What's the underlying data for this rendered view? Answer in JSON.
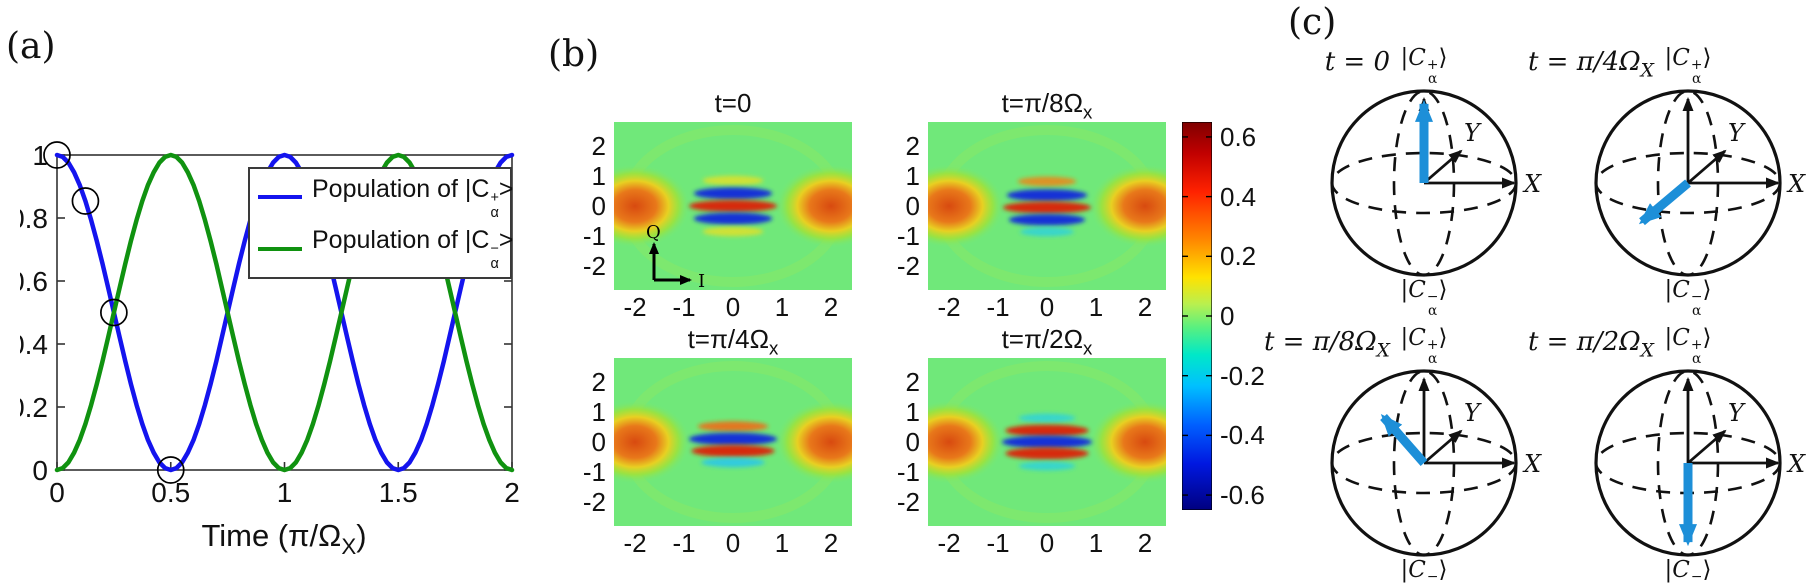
{
  "panels": {
    "a": {
      "label": "(a)",
      "legend": [
        {
          "text_pre": "Population of |C",
          "sup": "+",
          "sub": "α",
          "text_post": ">",
          "color": "#1414ee"
        },
        {
          "text_pre": "Population of |C",
          "sup": "−",
          "sub": "α",
          "text_post": ">",
          "color": "#109210"
        }
      ],
      "xlabel": {
        "pre": "Time (π/Ω",
        "sub": "X",
        "post": ")"
      }
    },
    "b": {
      "label": "(b)",
      "colorbar": {
        "tick_labels": [
          "0.6",
          "0.4",
          "0.2",
          "0",
          "-0.2",
          "-0.4",
          "-0.6"
        ],
        "tick_values": [
          0.6,
          0.4,
          0.2,
          0,
          -0.2,
          -0.4,
          -0.6
        ],
        "vmin": -0.65,
        "vmax": 0.65,
        "colormap": "jet"
      },
      "inset_axes": {
        "x_label": "I",
        "y_label": "Q"
      }
    },
    "c": {
      "label": "(c)",
      "ket_plus": {
        "open": "|",
        "letter": "C",
        "sup": "+",
        "sub": "α",
        "close": "⟩"
      },
      "ket_minus": {
        "open": "|",
        "letter": "C",
        "sup": "−",
        "sub": "α",
        "close": "⟩"
      },
      "axis_x": "X",
      "axis_y": "Y",
      "arrow_color": "#1d8fd8",
      "spheres": [
        {
          "time_pre": "t = 0",
          "time_sub": "",
          "arrow_dir": [
            0,
            -0.86
          ],
          "arrow_meaning": "state at +Z pole"
        },
        {
          "time_pre": "t = π/4Ω",
          "time_sub": "X",
          "arrow_dir": [
            -0.5,
            0.42
          ],
          "arrow_meaning": "state on equator toward -Y"
        },
        {
          "time_pre": "t = π/8Ω",
          "time_sub": "X",
          "arrow_dir": [
            -0.44,
            -0.5
          ],
          "arrow_meaning": "state between +Z and -Y"
        },
        {
          "time_pre": "t = π/2Ω",
          "time_sub": "X",
          "arrow_dir": [
            0,
            0.86
          ],
          "arrow_meaning": "state at -Z pole"
        }
      ]
    }
  },
  "chart_data": [
    {
      "type": "line",
      "title": "",
      "xlabel": "Time (π/Ω_X)",
      "ylabel": "",
      "xlim": [
        0,
        2
      ],
      "ylim": [
        0,
        1
      ],
      "xtick_values": [
        0,
        0.5,
        1,
        1.5,
        2
      ],
      "xtick_labels": [
        "0",
        "0.5",
        "1",
        "1.5",
        "2"
      ],
      "ytick_values": [
        0,
        0.2,
        0.4,
        0.6,
        0.8,
        1
      ],
      "ytick_labels": [
        "0",
        "0.2",
        "0.4",
        "0.6",
        "0.8",
        "1"
      ],
      "x_start": 0,
      "x_step": 0.025,
      "series": [
        {
          "name": "Population of |C_α^+>",
          "color": "#1414ee",
          "values": [
            1,
            0.994,
            0.976,
            0.945,
            0.904,
            0.854,
            0.794,
            0.727,
            0.655,
            0.578,
            0.5,
            0.422,
            0.345,
            0.273,
            0.206,
            0.146,
            0.095,
            0.055,
            0.024,
            0.006,
            0,
            0.006,
            0.024,
            0.055,
            0.095,
            0.146,
            0.206,
            0.273,
            0.345,
            0.422,
            0.5,
            0.578,
            0.655,
            0.727,
            0.794,
            0.854,
            0.904,
            0.945,
            0.976,
            0.994,
            1,
            0.994,
            0.976,
            0.945,
            0.904,
            0.854,
            0.794,
            0.727,
            0.655,
            0.578,
            0.5,
            0.422,
            0.345,
            0.273,
            0.206,
            0.146,
            0.095,
            0.055,
            0.024,
            0.006,
            0,
            0.006,
            0.024,
            0.055,
            0.095,
            0.146,
            0.206,
            0.273,
            0.345,
            0.422,
            0.5,
            0.578,
            0.655,
            0.727,
            0.794,
            0.854,
            0.904,
            0.945,
            0.976,
            0.994,
            1
          ]
        },
        {
          "name": "Population of |C_α^−>",
          "color": "#109210",
          "values": [
            0,
            0.006,
            0.024,
            0.055,
            0.096,
            0.146,
            0.206,
            0.273,
            0.345,
            0.422,
            0.5,
            0.578,
            0.655,
            0.727,
            0.794,
            0.854,
            0.905,
            0.945,
            0.976,
            0.994,
            1,
            0.994,
            0.976,
            0.945,
            0.905,
            0.854,
            0.794,
            0.727,
            0.655,
            0.578,
            0.5,
            0.422,
            0.345,
            0.273,
            0.206,
            0.146,
            0.096,
            0.055,
            0.024,
            0.006,
            0,
            0.006,
            0.024,
            0.055,
            0.096,
            0.146,
            0.206,
            0.273,
            0.345,
            0.422,
            0.5,
            0.578,
            0.655,
            0.727,
            0.794,
            0.854,
            0.905,
            0.945,
            0.976,
            0.994,
            1,
            0.994,
            0.976,
            0.945,
            0.905,
            0.854,
            0.794,
            0.727,
            0.655,
            0.578,
            0.5,
            0.422,
            0.345,
            0.273,
            0.206,
            0.146,
            0.096,
            0.055,
            0.024,
            0.006,
            0
          ]
        }
      ],
      "markers": {
        "series": "Population of |C_α^+>",
        "shape": "open-circle",
        "points": [
          [
            0,
            1
          ],
          [
            0.125,
            0.854
          ],
          [
            0.25,
            0.5
          ],
          [
            0.5,
            0
          ]
        ]
      }
    },
    {
      "type": "heatmap",
      "title_pre": "t=0",
      "title_sub": "",
      "xticks": [
        -2,
        -1,
        0,
        1,
        2
      ],
      "yticks": [
        2,
        1,
        0,
        -1,
        -2
      ],
      "xlim": [
        -2.43,
        2.43
      ],
      "ylim": [
        -2.8,
        2.8
      ],
      "value_range": [
        -0.65,
        0.65
      ],
      "background_value": 0,
      "inset": true,
      "positive_blobs": [
        [
          -2,
          0
        ],
        [
          2,
          0
        ]
      ],
      "fringes": [
        {
          "y": 0.85,
          "color": "#e0e029",
          "rx": 0.62,
          "ry": 0.16,
          "op": 0.85
        },
        {
          "y": 0.42,
          "color": "#1433d6",
          "rx": 0.8,
          "ry": 0.2,
          "op": 1
        },
        {
          "y": 0.0,
          "color": "#d62c0a",
          "rx": 0.9,
          "ry": 0.2,
          "op": 1
        },
        {
          "y": -0.42,
          "color": "#1433d6",
          "rx": 0.8,
          "ry": 0.2,
          "op": 1
        },
        {
          "y": -0.85,
          "color": "#e0e029",
          "rx": 0.62,
          "ry": 0.16,
          "op": 0.85
        }
      ]
    },
    {
      "type": "heatmap",
      "title_pre": "t=π/8Ω",
      "title_sub": "x",
      "xticks": [
        -2,
        -1,
        0,
        1,
        2
      ],
      "yticks": [
        2,
        1,
        0,
        -1,
        -2
      ],
      "xlim": [
        -2.43,
        2.43
      ],
      "ylim": [
        -2.8,
        2.8
      ],
      "value_range": [
        -0.65,
        0.65
      ],
      "background_value": 0,
      "inset": false,
      "positive_blobs": [
        [
          -2,
          0
        ],
        [
          2,
          0
        ]
      ],
      "fringes": [
        {
          "y": 0.82,
          "color": "#e8891d",
          "rx": 0.6,
          "ry": 0.16,
          "op": 0.9
        },
        {
          "y": 0.36,
          "color": "#1433d6",
          "rx": 0.82,
          "ry": 0.2,
          "op": 1
        },
        {
          "y": -0.05,
          "color": "#d62c0a",
          "rx": 0.9,
          "ry": 0.2,
          "op": 1
        },
        {
          "y": -0.46,
          "color": "#1433d6",
          "rx": 0.78,
          "ry": 0.19,
          "op": 1
        },
        {
          "y": -0.86,
          "color": "#2bd0e0",
          "rx": 0.55,
          "ry": 0.15,
          "op": 0.8
        }
      ]
    },
    {
      "type": "heatmap",
      "title_pre": "t=π/4Ω",
      "title_sub": "x",
      "xticks": [
        -2,
        -1,
        0,
        1,
        2
      ],
      "yticks": [
        2,
        1,
        0,
        -1,
        -2
      ],
      "xlim": [
        -2.43,
        2.43
      ],
      "ylim": [
        -2.8,
        2.8
      ],
      "value_range": [
        -0.65,
        0.65
      ],
      "background_value": 0,
      "inset": false,
      "positive_blobs": [
        [
          -2,
          0
        ],
        [
          2,
          0
        ]
      ],
      "fringes": [
        {
          "y": 0.52,
          "color": "#e8721d",
          "rx": 0.72,
          "ry": 0.17,
          "op": 0.95
        },
        {
          "y": 0.1,
          "color": "#1433d6",
          "rx": 0.9,
          "ry": 0.21,
          "op": 1
        },
        {
          "y": -0.3,
          "color": "#d62c0a",
          "rx": 0.85,
          "ry": 0.2,
          "op": 1
        },
        {
          "y": -0.68,
          "color": "#29c8e8",
          "rx": 0.65,
          "ry": 0.16,
          "op": 0.9
        }
      ]
    },
    {
      "type": "heatmap",
      "title_pre": "t=π/2Ω",
      "title_sub": "x",
      "xticks": [
        -2,
        -1,
        0,
        1,
        2
      ],
      "yticks": [
        2,
        1,
        0,
        -1,
        -2
      ],
      "xlim": [
        -2.43,
        2.43
      ],
      "ylim": [
        -2.8,
        2.8
      ],
      "value_range": [
        -0.65,
        0.65
      ],
      "background_value": 0,
      "inset": false,
      "positive_blobs": [
        [
          -2,
          0
        ],
        [
          2,
          0
        ]
      ],
      "fringes": [
        {
          "y": 0.8,
          "color": "#2bd0e0",
          "rx": 0.58,
          "ry": 0.15,
          "op": 0.8
        },
        {
          "y": 0.38,
          "color": "#d62c0a",
          "rx": 0.85,
          "ry": 0.2,
          "op": 1
        },
        {
          "y": 0.0,
          "color": "#1433d6",
          "rx": 0.92,
          "ry": 0.21,
          "op": 1
        },
        {
          "y": -0.38,
          "color": "#d62c0a",
          "rx": 0.85,
          "ry": 0.2,
          "op": 1
        },
        {
          "y": -0.8,
          "color": "#2bd0e0",
          "rx": 0.58,
          "ry": 0.15,
          "op": 0.8
        }
      ]
    }
  ]
}
